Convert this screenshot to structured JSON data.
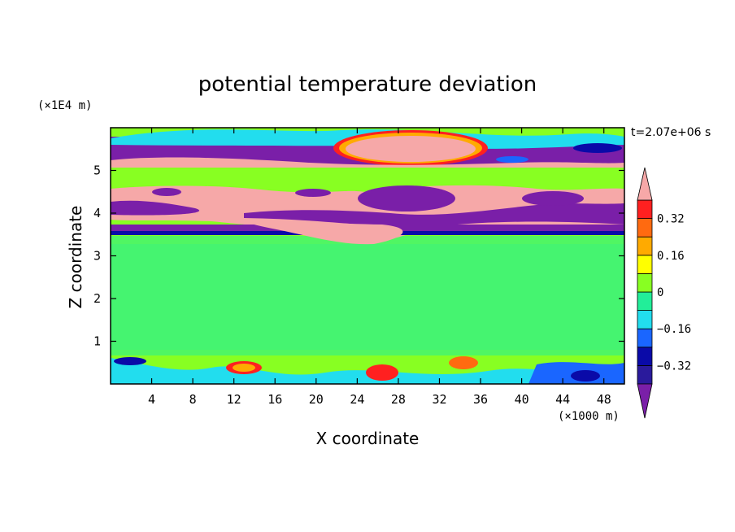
{
  "chart_data": {
    "type": "heatmap",
    "title": "potential temperature deviation",
    "xlabel": "X coordinate",
    "ylabel": "Z coordinate",
    "x_unit": "(×1000 m)",
    "y_unit": "(×1E4 m)",
    "time_label": "t=2.07e+06 s",
    "xlim": [
      0,
      50
    ],
    "ylim": [
      0,
      6
    ],
    "x_ticks": [
      4,
      8,
      12,
      16,
      20,
      24,
      28,
      32,
      36,
      40,
      44,
      48
    ],
    "y_ticks": [
      1,
      2,
      3,
      4,
      5
    ],
    "x_tick_labels": [
      "4",
      "8",
      "12",
      "16",
      "20",
      "24",
      "28",
      "32",
      "36",
      "40",
      "44",
      "48"
    ],
    "y_tick_labels": [
      "1",
      "2",
      "3",
      "4",
      "5"
    ],
    "colorbar": {
      "levels": [
        -0.4,
        -0.32,
        -0.24,
        -0.16,
        -0.08,
        0,
        0.08,
        0.16,
        0.24,
        0.32,
        0.4
      ],
      "colors": [
        "#7a1fa8",
        "#2a1a9c",
        "#0a0aa8",
        "#1a66ff",
        "#22ddee",
        "#22ee99",
        "#88ff22",
        "#ffff00",
        "#ffaa00",
        "#ff6a10",
        "#ff2020",
        "#f6a8a8"
      ],
      "tick_labels": [
        "0.32",
        "0.16",
        "0",
        "−0.16",
        "−0.32"
      ],
      "tick_values": [
        0.32,
        0.16,
        0,
        -0.16,
        -0.32
      ]
    },
    "bands": [
      {
        "z": [
          0,
          0.7
        ],
        "desc": "mixed",
        "value": 0
      },
      {
        "z": [
          0.7,
          3.4
        ],
        "value": 0.04
      },
      {
        "z": [
          3.4,
          3.6
        ],
        "value": -0.36
      },
      {
        "z": [
          3.6,
          4.6
        ],
        "value": -0.4
      },
      {
        "z": [
          4.6,
          5.05
        ],
        "value": 0.04
      },
      {
        "z": [
          5.05,
          5.25
        ],
        "value": 0.4
      },
      {
        "z": [
          5.25,
          5.8
        ],
        "value": -0.4
      },
      {
        "z": [
          5.8,
          6.0
        ],
        "value": 0.04
      }
    ]
  }
}
